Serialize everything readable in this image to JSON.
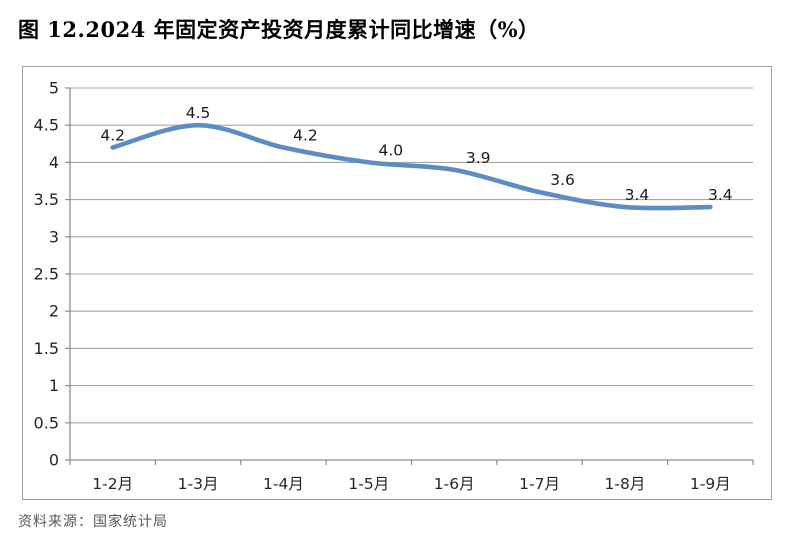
{
  "title": "图 12.2024 年固定资产投资月度累计同比增速（%）",
  "source": "资料来源：国家统计局",
  "chart_data": {
    "type": "line",
    "title": "",
    "xlabel": "",
    "ylabel": "",
    "categories": [
      "1-2月",
      "1-3月",
      "1-4月",
      "1-5月",
      "1-6月",
      "1-7月",
      "1-8月",
      "1-9月"
    ],
    "values": [
      4.2,
      4.5,
      4.2,
      4.0,
      3.9,
      3.6,
      3.4,
      3.4
    ],
    "point_labels": [
      "4.2",
      "4.5",
      "4.2",
      "4.0",
      "3.9",
      "3.6",
      "3.4",
      "3.4"
    ],
    "ylim": [
      0,
      5
    ],
    "ytick_step": 0.5,
    "grid": true,
    "legend_position": "none",
    "smooth": true,
    "colors": {
      "line": "#5B8DC3",
      "grid": "#A6A6A6",
      "axis": "#8C8C8C",
      "tick_text": "#262626",
      "data_label": "#1a1a1a"
    },
    "label_dx": [
      0,
      0,
      22,
      22,
      24,
      23,
      12,
      10
    ]
  }
}
